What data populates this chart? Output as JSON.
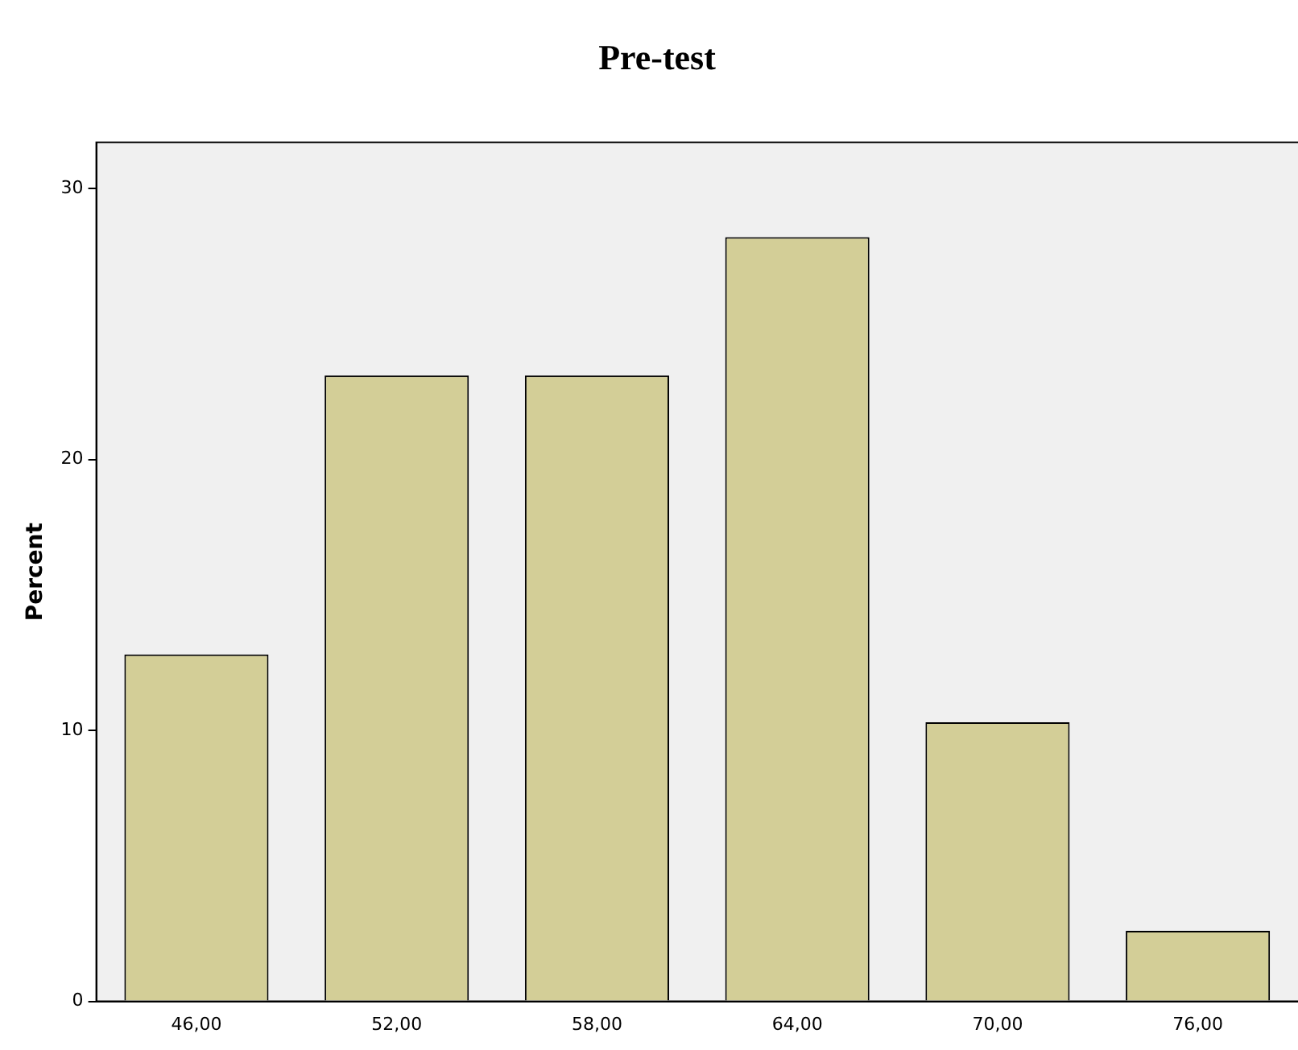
{
  "chart_data": {
    "type": "bar",
    "title": "Pre-test",
    "ylabel": "Percent",
    "categories": [
      "46,00",
      "52,00",
      "58,00",
      "64,00",
      "70,00",
      "76,00"
    ],
    "values": [
      12.8,
      23.1,
      23.1,
      28.2,
      10.3,
      2.6
    ],
    "color": "#d3ce97",
    "ylim": [
      0,
      31.7
    ],
    "yticks": [
      0,
      10,
      20,
      30
    ],
    "grid": false
  }
}
